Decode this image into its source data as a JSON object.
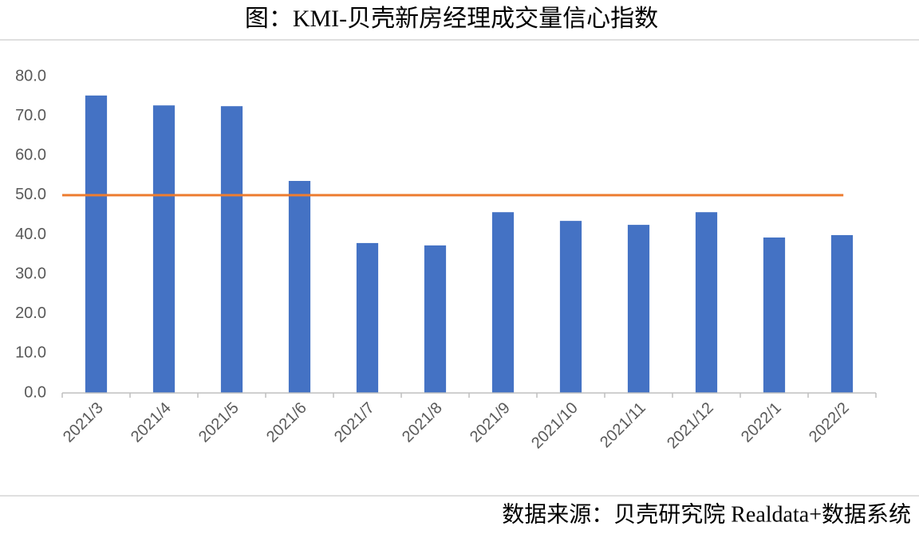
{
  "chart_data": {
    "type": "bar",
    "title": "图：KMI-贝壳新房经理成交量信心指数",
    "source": "数据来源：贝壳研究院 Realdata+数据系统",
    "categories": [
      "2021/3",
      "2021/4",
      "2021/5",
      "2021/6",
      "2021/7",
      "2021/8",
      "2021/9",
      "2021/10",
      "2021/11",
      "2021/12",
      "2022/1",
      "2022/2"
    ],
    "values": [
      75.2,
      72.7,
      72.5,
      53.6,
      37.9,
      37.3,
      45.7,
      43.5,
      42.5,
      45.7,
      39.3,
      39.9
    ],
    "color": "#4472c4",
    "reference_line": {
      "value": 50,
      "color": "#ed7d31"
    },
    "ylim": [
      0,
      80
    ],
    "yticks": [
      {
        "value": 0,
        "label": "0.0"
      },
      {
        "value": 10,
        "label": "10.0"
      },
      {
        "value": 20,
        "label": "20.0"
      },
      {
        "value": 30,
        "label": "30.0"
      },
      {
        "value": 40,
        "label": "40.0"
      },
      {
        "value": 50,
        "label": "50.0"
      },
      {
        "value": 60,
        "label": "60.0"
      },
      {
        "value": 70,
        "label": "70.0"
      },
      {
        "value": 80,
        "label": "80.0"
      }
    ],
    "grid": false
  }
}
